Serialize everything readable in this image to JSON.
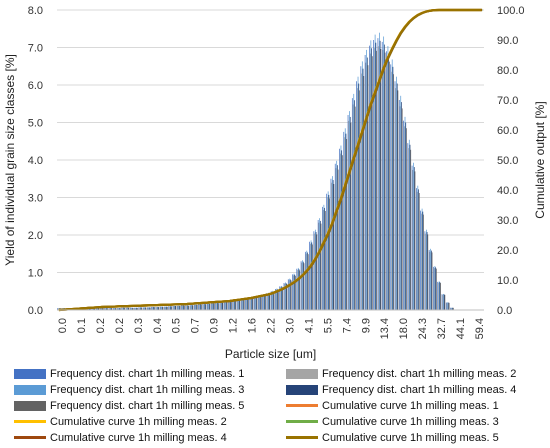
{
  "chart_data": {
    "type": "bar",
    "xlabel": "Particle size [um]",
    "ylabel": "Yield of individual grain size classes [%]",
    "y2label": "Cumulative output [%]",
    "ylim": [
      0,
      8
    ],
    "y2lim": [
      0,
      100
    ],
    "yticks": [
      "0.0",
      "1.0",
      "2.0",
      "3.0",
      "4.0",
      "5.0",
      "6.0",
      "7.0",
      "8.0"
    ],
    "y2ticks": [
      "0.0",
      "10.0",
      "20.0",
      "30.0",
      "40.0",
      "50.0",
      "60.0",
      "70.0",
      "80.0",
      "90.0",
      "100.0"
    ],
    "xticks": [
      "0.0",
      "0.1",
      "0.2",
      "0.2",
      "0.3",
      "0.4",
      "0.5",
      "0.7",
      "0.9",
      "1.2",
      "1.6",
      "2.2",
      "3.0",
      "4.1",
      "5.5",
      "7.4",
      "9.9",
      "13.4",
      "18.0",
      "24.3",
      "32.7",
      "44.1",
      "59.4"
    ],
    "n_classes": 100,
    "grid": "horizontal",
    "legend_position": "bottom",
    "bar_series": [
      {
        "name": "Frequency dist. chart 1h milling meas. 1",
        "color": "#4472c4"
      },
      {
        "name": "Frequency dist. chart 1h milling meas. 2",
        "color": "#a5a5a5"
      },
      {
        "name": "Frequency dist. chart 1h milling meas. 3",
        "color": "#5b9bd5"
      },
      {
        "name": "Frequency dist. chart 1h milling meas. 4",
        "color": "#264478"
      },
      {
        "name": "Frequency dist. chart 1h milling meas. 5",
        "color": "#636363"
      }
    ],
    "line_series": [
      {
        "name": "Cumulative curve 1h milling meas. 1",
        "color": "#ed7d31"
      },
      {
        "name": "Cumulative curve 1h milling meas. 2",
        "color": "#ffc000"
      },
      {
        "name": "Cumulative curve 1h milling meas. 3",
        "color": "#70ad47"
      },
      {
        "name": "Cumulative curve 1h milling meas. 4",
        "color": "#9e480e"
      },
      {
        "name": "Cumulative curve 1h milling meas. 5",
        "color": "#997300"
      }
    ],
    "frequency_values": [
      0.05,
      0.05,
      0.05,
      0.05,
      0.05,
      0.05,
      0.05,
      0.05,
      0.05,
      0.05,
      0.05,
      0.05,
      0.05,
      0.05,
      0.05,
      0.06,
      0.06,
      0.06,
      0.06,
      0.07,
      0.07,
      0.07,
      0.08,
      0.08,
      0.09,
      0.09,
      0.1,
      0.11,
      0.11,
      0.12,
      0.12,
      0.13,
      0.14,
      0.15,
      0.16,
      0.17,
      0.18,
      0.19,
      0.2,
      0.22,
      0.24,
      0.26,
      0.28,
      0.3,
      0.32,
      0.34,
      0.36,
      0.38,
      0.41,
      0.45,
      0.5,
      0.56,
      0.63,
      0.72,
      0.82,
      0.95,
      1.1,
      1.3,
      1.55,
      1.82,
      2.1,
      2.4,
      2.75,
      3.1,
      3.5,
      3.9,
      4.3,
      4.75,
      5.2,
      5.65,
      6.1,
      6.5,
      6.8,
      7.05,
      7.2,
      7.25,
      7.15,
      6.9,
      6.55,
      6.1,
      5.6,
      5.05,
      4.45,
      3.85,
      3.25,
      2.65,
      2.1,
      1.6,
      1.15,
      0.75,
      0.42,
      0.2,
      0.06,
      0.01,
      0,
      0,
      0,
      0,
      0,
      0
    ],
    "cumulative_values": [
      0,
      0.1,
      0.2,
      0.3,
      0.4,
      0.5,
      0.6,
      0.7,
      0.8,
      0.9,
      1,
      1.05,
      1.1,
      1.15,
      1.2,
      1.25,
      1.3,
      1.35,
      1.4,
      1.45,
      1.5,
      1.55,
      1.6,
      1.65,
      1.7,
      1.75,
      1.8,
      1.85,
      1.9,
      1.95,
      2,
      2.1,
      2.2,
      2.3,
      2.4,
      2.5,
      2.6,
      2.7,
      2.8,
      2.9,
      3,
      3.2,
      3.4,
      3.6,
      3.8,
      4,
      4.3,
      4.6,
      4.9,
      5.2,
      5.6,
      6.2,
      6.8,
      7.5,
      8.3,
      9.2,
      10.3,
      11.5,
      13,
      14.8,
      17,
      19.5,
      22.5,
      25.5,
      29,
      33,
      37,
      41.5,
      46,
      50.5,
      55,
      59.5,
      64,
      68.5,
      72.5,
      76.5,
      80.5,
      84,
      87,
      89.8,
      92.3,
      94.3,
      96,
      97.3,
      98.3,
      99,
      99.5,
      99.8,
      99.95,
      100,
      100,
      100,
      100,
      100,
      100,
      100,
      100,
      100,
      100,
      100
    ]
  }
}
